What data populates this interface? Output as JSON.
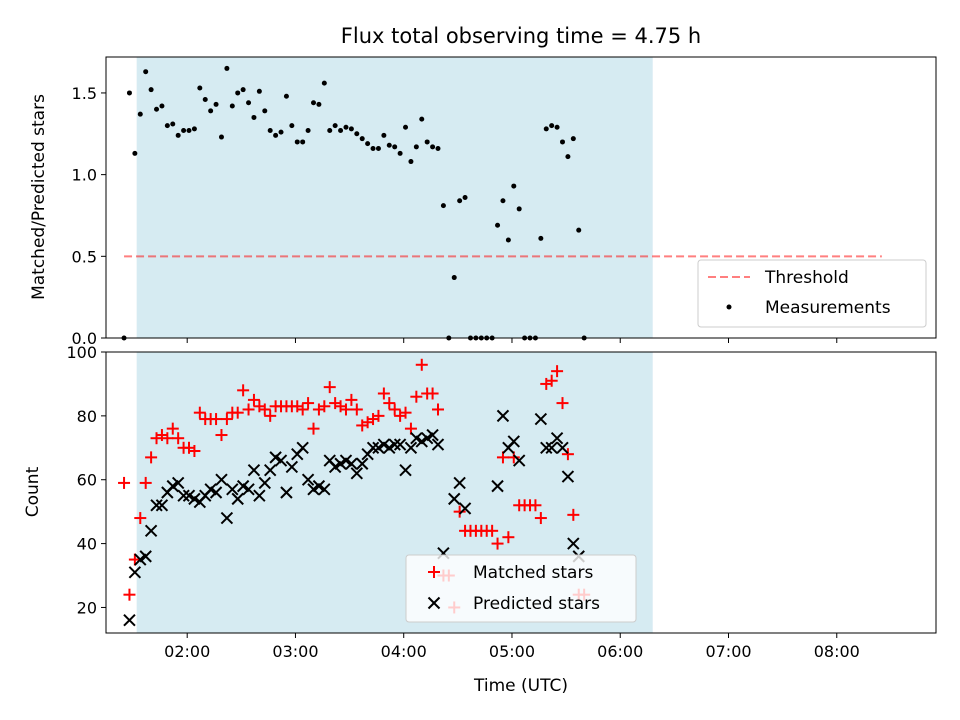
{
  "colors": {
    "span": "#add8e6",
    "threshold": "#ff0000",
    "measurement": "#000000",
    "matched": "#ff0000",
    "predicted": "#000000"
  },
  "chart_data": [
    {
      "type": "scatter",
      "title": "Flux total observing time = 4.75 h",
      "xlabel": "",
      "ylabel": "Matched/Predicted stars",
      "xlim": [
        "01:15",
        "08:55"
      ],
      "ylim": [
        0,
        1.72
      ],
      "yticks": [
        "0.0",
        "0.5",
        "1.0",
        "1.5"
      ],
      "shaded_span": [
        "01:32",
        "06:18"
      ],
      "threshold": 0.5,
      "threshold_x": [
        "01:25",
        "08:25"
      ],
      "legend": [
        "Threshold",
        "Measurements"
      ],
      "legend_position": "lower right",
      "measurements": [
        [
          "01:25",
          0.0
        ],
        [
          "01:28",
          1.5
        ],
        [
          "01:31",
          1.13
        ],
        [
          "01:34",
          1.37
        ],
        [
          "01:37",
          1.63
        ],
        [
          "01:40",
          1.52
        ],
        [
          "01:43",
          1.4
        ],
        [
          "01:46",
          1.42
        ],
        [
          "01:49",
          1.3
        ],
        [
          "01:52",
          1.31
        ],
        [
          "01:55",
          1.24
        ],
        [
          "01:58",
          1.27
        ],
        [
          "02:01",
          1.27
        ],
        [
          "02:04",
          1.28
        ],
        [
          "02:07",
          1.53
        ],
        [
          "02:10",
          1.46
        ],
        [
          "02:13",
          1.39
        ],
        [
          "02:16",
          1.43
        ],
        [
          "02:19",
          1.23
        ],
        [
          "02:22",
          1.65
        ],
        [
          "02:25",
          1.42
        ],
        [
          "02:28",
          1.5
        ],
        [
          "02:31",
          1.52
        ],
        [
          "02:34",
          1.44
        ],
        [
          "02:37",
          1.35
        ],
        [
          "02:40",
          1.51
        ],
        [
          "02:43",
          1.39
        ],
        [
          "02:46",
          1.27
        ],
        [
          "02:49",
          1.24
        ],
        [
          "02:52",
          1.26
        ],
        [
          "02:55",
          1.48
        ],
        [
          "02:58",
          1.3
        ],
        [
          "03:01",
          1.2
        ],
        [
          "03:04",
          1.2
        ],
        [
          "03:07",
          1.27
        ],
        [
          "03:10",
          1.44
        ],
        [
          "03:13",
          1.43
        ],
        [
          "03:16",
          1.56
        ],
        [
          "03:19",
          1.27
        ],
        [
          "03:22",
          1.3
        ],
        [
          "03:25",
          1.27
        ],
        [
          "03:28",
          1.29
        ],
        [
          "03:31",
          1.28
        ],
        [
          "03:34",
          1.25
        ],
        [
          "03:37",
          1.22
        ],
        [
          "03:40",
          1.19
        ],
        [
          "03:43",
          1.16
        ],
        [
          "03:46",
          1.16
        ],
        [
          "03:49",
          1.24
        ],
        [
          "03:52",
          1.18
        ],
        [
          "03:55",
          1.17
        ],
        [
          "03:58",
          1.13
        ],
        [
          "04:01",
          1.29
        ],
        [
          "04:04",
          1.08
        ],
        [
          "04:07",
          1.17
        ],
        [
          "04:10",
          1.34
        ],
        [
          "04:13",
          1.2
        ],
        [
          "04:16",
          1.17
        ],
        [
          "04:19",
          1.16
        ],
        [
          "04:22",
          0.81
        ],
        [
          "04:25",
          0.0
        ],
        [
          "04:28",
          0.37
        ],
        [
          "04:31",
          0.84
        ],
        [
          "04:34",
          0.86
        ],
        [
          "04:37",
          0.0
        ],
        [
          "04:40",
          0.0
        ],
        [
          "04:43",
          0.0
        ],
        [
          "04:46",
          0.0
        ],
        [
          "04:49",
          0.0
        ],
        [
          "04:52",
          0.69
        ],
        [
          "04:55",
          0.84
        ],
        [
          "04:58",
          0.6
        ],
        [
          "05:01",
          0.93
        ],
        [
          "05:04",
          0.79
        ],
        [
          "05:07",
          0.0
        ],
        [
          "05:10",
          0.0
        ],
        [
          "05:13",
          0.0
        ],
        [
          "05:16",
          0.61
        ],
        [
          "05:19",
          1.28
        ],
        [
          "05:22",
          1.3
        ],
        [
          "05:25",
          1.29
        ],
        [
          "05:28",
          1.2
        ],
        [
          "05:31",
          1.11
        ],
        [
          "05:34",
          1.22
        ],
        [
          "05:37",
          0.66
        ],
        [
          "05:40",
          0.0
        ]
      ]
    },
    {
      "type": "scatter",
      "title": "",
      "xlabel": "Time (UTC)",
      "ylabel": "Count",
      "xlim": [
        "01:15",
        "08:55"
      ],
      "ylim": [
        12,
        100
      ],
      "yticks": [
        "20",
        "40",
        "60",
        "80",
        "100"
      ],
      "xticks": [
        "02:00",
        "03:00",
        "04:00",
        "05:00",
        "06:00",
        "07:00",
        "08:00"
      ],
      "shaded_span": [
        "01:32",
        "06:18"
      ],
      "legend": [
        "Matched stars",
        "Predicted stars"
      ],
      "legend_position": "lower center",
      "series": [
        {
          "name": "Matched stars",
          "marker": "+",
          "points": [
            [
              "01:25",
              59
            ],
            [
              "01:28",
              24
            ],
            [
              "01:31",
              35
            ],
            [
              "01:34",
              48
            ],
            [
              "01:37",
              59
            ],
            [
              "01:40",
              67
            ],
            [
              "01:43",
              73
            ],
            [
              "01:46",
              74
            ],
            [
              "01:49",
              73
            ],
            [
              "01:52",
              76
            ],
            [
              "01:55",
              73
            ],
            [
              "01:58",
              70
            ],
            [
              "02:01",
              70
            ],
            [
              "02:04",
              69
            ],
            [
              "02:07",
              81
            ],
            [
              "02:10",
              79
            ],
            [
              "02:13",
              79
            ],
            [
              "02:16",
              79
            ],
            [
              "02:19",
              74
            ],
            [
              "02:22",
              79
            ],
            [
              "02:25",
              81
            ],
            [
              "02:28",
              81
            ],
            [
              "02:31",
              88
            ],
            [
              "02:34",
              82
            ],
            [
              "02:37",
              85
            ],
            [
              "02:40",
              83
            ],
            [
              "02:43",
              82
            ],
            [
              "02:46",
              80
            ],
            [
              "02:49",
              83
            ],
            [
              "02:52",
              83
            ],
            [
              "02:55",
              83
            ],
            [
              "02:58",
              83
            ],
            [
              "03:01",
              83
            ],
            [
              "03:04",
              82
            ],
            [
              "03:07",
              84
            ],
            [
              "03:10",
              76
            ],
            [
              "03:13",
              82
            ],
            [
              "03:16",
              83
            ],
            [
              "03:19",
              89
            ],
            [
              "03:22",
              84
            ],
            [
              "03:25",
              83
            ],
            [
              "03:28",
              82
            ],
            [
              "03:31",
              85
            ],
            [
              "03:34",
              82
            ],
            [
              "03:37",
              77
            ],
            [
              "03:40",
              78
            ],
            [
              "03:43",
              79
            ],
            [
              "03:46",
              80
            ],
            [
              "03:49",
              87
            ],
            [
              "03:52",
              84
            ],
            [
              "03:55",
              82
            ],
            [
              "03:58",
              80
            ],
            [
              "04:01",
              81
            ],
            [
              "04:04",
              76
            ],
            [
              "04:07",
              86
            ],
            [
              "04:10",
              96
            ],
            [
              "04:13",
              87
            ],
            [
              "04:16",
              87
            ],
            [
              "04:19",
              82
            ],
            [
              "04:22",
              30
            ],
            [
              "04:25",
              30
            ],
            [
              "04:28",
              20
            ],
            [
              "04:31",
              50
            ],
            [
              "04:34",
              44
            ],
            [
              "04:37",
              44
            ],
            [
              "04:40",
              44
            ],
            [
              "04:43",
              44
            ],
            [
              "04:46",
              44
            ],
            [
              "04:49",
              44
            ],
            [
              "04:52",
              40
            ],
            [
              "04:55",
              67
            ],
            [
              "04:58",
              42
            ],
            [
              "05:01",
              67
            ],
            [
              "05:04",
              52
            ],
            [
              "05:07",
              52
            ],
            [
              "05:10",
              52
            ],
            [
              "05:13",
              52
            ],
            [
              "05:16",
              48
            ],
            [
              "05:19",
              90
            ],
            [
              "05:22",
              91
            ],
            [
              "05:25",
              94
            ],
            [
              "05:28",
              84
            ],
            [
              "05:31",
              68
            ],
            [
              "05:34",
              49
            ],
            [
              "05:37",
              24
            ],
            [
              "05:40",
              24
            ]
          ]
        },
        {
          "name": "Predicted stars",
          "marker": "x",
          "points": [
            [
              "01:28",
              16
            ],
            [
              "01:31",
              31
            ],
            [
              "01:34",
              35
            ],
            [
              "01:37",
              36
            ],
            [
              "01:40",
              44
            ],
            [
              "01:43",
              52
            ],
            [
              "01:46",
              52
            ],
            [
              "01:49",
              56
            ],
            [
              "01:52",
              58
            ],
            [
              "01:55",
              59
            ],
            [
              "01:58",
              55
            ],
            [
              "02:01",
              55
            ],
            [
              "02:04",
              54
            ],
            [
              "02:07",
              53
            ],
            [
              "02:10",
              55
            ],
            [
              "02:13",
              57
            ],
            [
              "02:16",
              56
            ],
            [
              "02:19",
              60
            ],
            [
              "02:22",
              48
            ],
            [
              "02:25",
              57
            ],
            [
              "02:28",
              54
            ],
            [
              "02:31",
              58
            ],
            [
              "02:34",
              57
            ],
            [
              "02:37",
              63
            ],
            [
              "02:40",
              55
            ],
            [
              "02:43",
              59
            ],
            [
              "02:46",
              63
            ],
            [
              "02:49",
              67
            ],
            [
              "02:52",
              66
            ],
            [
              "02:55",
              56
            ],
            [
              "02:58",
              64
            ],
            [
              "03:01",
              68
            ],
            [
              "03:04",
              70
            ],
            [
              "03:07",
              60
            ],
            [
              "03:10",
              57
            ],
            [
              "03:13",
              58
            ],
            [
              "03:16",
              57
            ],
            [
              "03:19",
              66
            ],
            [
              "03:22",
              64
            ],
            [
              "03:25",
              65
            ],
            [
              "03:28",
              66
            ],
            [
              "03:31",
              65
            ],
            [
              "03:34",
              62
            ],
            [
              "03:37",
              65
            ],
            [
              "03:40",
              68
            ],
            [
              "03:43",
              70
            ],
            [
              "03:46",
              70
            ],
            [
              "03:49",
              71
            ],
            [
              "03:52",
              70
            ],
            [
              "03:55",
              71
            ],
            [
              "03:58",
              71
            ],
            [
              "04:01",
              63
            ],
            [
              "04:04",
              70
            ],
            [
              "04:07",
              73
            ],
            [
              "04:10",
              72
            ],
            [
              "04:13",
              73
            ],
            [
              "04:16",
              74
            ],
            [
              "04:19",
              71
            ],
            [
              "04:22",
              37
            ],
            [
              "04:28",
              54
            ],
            [
              "04:31",
              59
            ],
            [
              "04:34",
              51
            ],
            [
              "04:52",
              58
            ],
            [
              "04:55",
              80
            ],
            [
              "04:58",
              70
            ],
            [
              "05:01",
              72
            ],
            [
              "05:04",
              66
            ],
            [
              "05:16",
              79
            ],
            [
              "05:19",
              70
            ],
            [
              "05:22",
              70
            ],
            [
              "05:25",
              73
            ],
            [
              "05:28",
              70
            ],
            [
              "05:31",
              61
            ],
            [
              "05:34",
              40
            ],
            [
              "05:37",
              36
            ]
          ]
        }
      ]
    }
  ]
}
